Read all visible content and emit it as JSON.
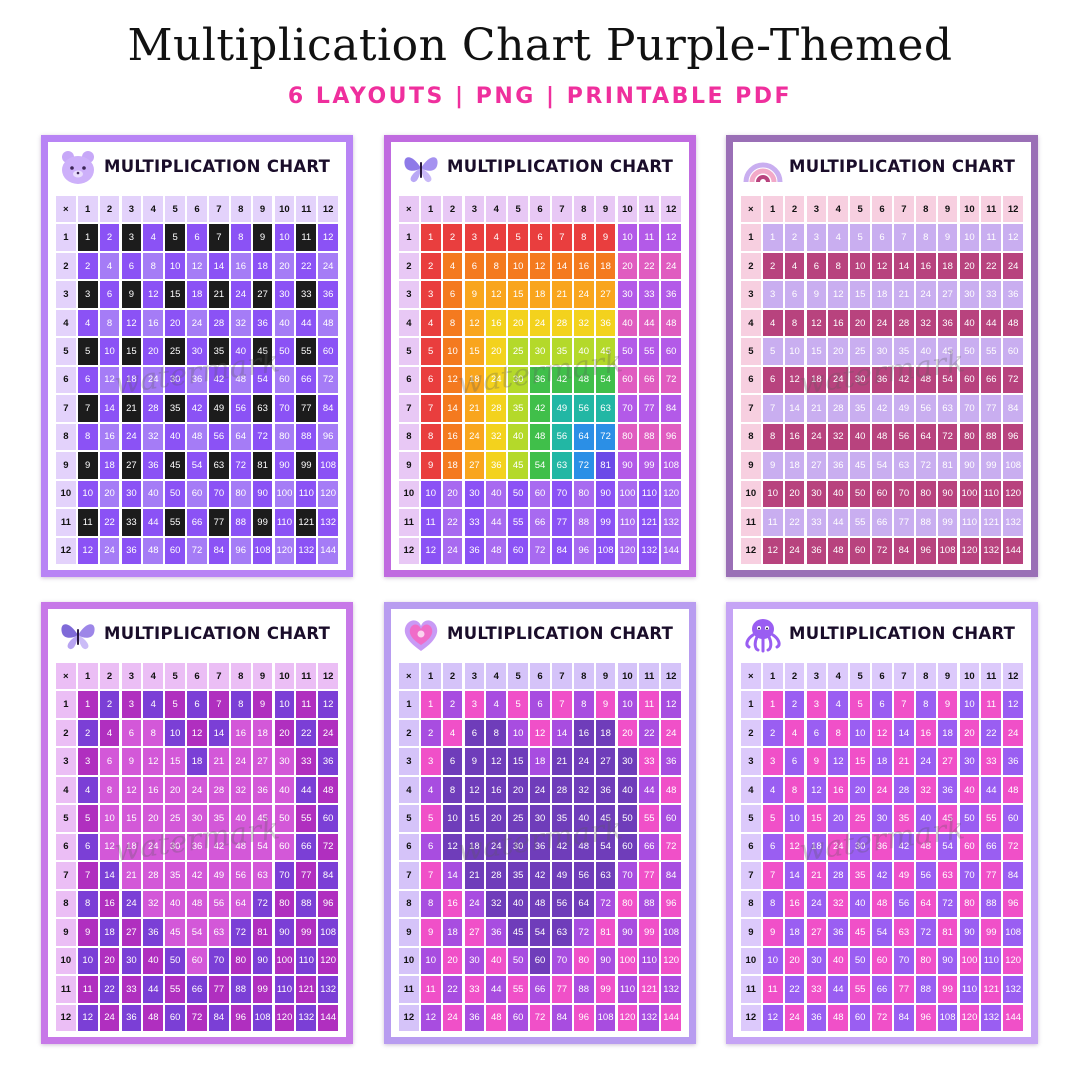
{
  "header": {
    "title": "Multiplication Chart Purple-Themed",
    "subtitle": "6 LAYOUTS  |  PNG  |  PRINTABLE PDF"
  },
  "watermark": "watermark",
  "colors": {
    "subtitle_pink": "#ef2f9d",
    "black": "#1c1c1c",
    "purple": "#8b52f5",
    "light_purple": "#d9c6fb",
    "magenta": "#c04a9a",
    "light_pink": "#f7c6da",
    "hot_pink": "#f050c8",
    "dark_purple": "#4a1a78"
  },
  "cards": [
    {
      "title": "MULTIPLICATION CHART",
      "icon": "bear-icon",
      "frame": "#b884f5",
      "header_bg": "#e3d2fb",
      "palette": "#8b52f5,#1c1c1c,#a57cf6",
      "pattern": "checker"
    },
    {
      "title": "MULTIPLICATION CHART",
      "icon": "butterfly-icon",
      "frame": "#c06be0",
      "header_bg": "#e8c8f5",
      "palette": "#e93e3e,#f47a1f,#f9a51d,#f3d21d,#b4d92a,#40bf4a,#22b7a4,#2b8fe6,#6b4ae8,#8f4ee8",
      "pattern": "rainbow"
    },
    {
      "title": "MULTIPLICATION CHART",
      "icon": "rainbow-icon",
      "frame": "#9a6fb6",
      "header_bg": "#f7cfe0",
      "palette": "#b8437e,#c9aef0",
      "pattern": "rows"
    },
    {
      "title": "MULTIPLICATION CHART",
      "icon": "butterfly-icon",
      "frame": "#c778e8",
      "header_bg": "#ebbef5",
      "palette": "#b02fbf,#d358d8,#7b3fd6,#4a1a78",
      "pattern": "heart"
    },
    {
      "title": "MULTIPLICATION CHART",
      "icon": "heart-icon",
      "frame": "#b89cf0",
      "header_bg": "#d5c3f9",
      "palette": "#f050c8,#6f3dba,#a84de0",
      "pattern": "heart"
    },
    {
      "title": "MULTIPLICATION CHART",
      "icon": "octopus-icon",
      "frame": "#c5a3f5",
      "header_bg": "#dcc9fb",
      "palette": "#f050c8,#9a5ef2",
      "pattern": "octo"
    }
  ]
}
